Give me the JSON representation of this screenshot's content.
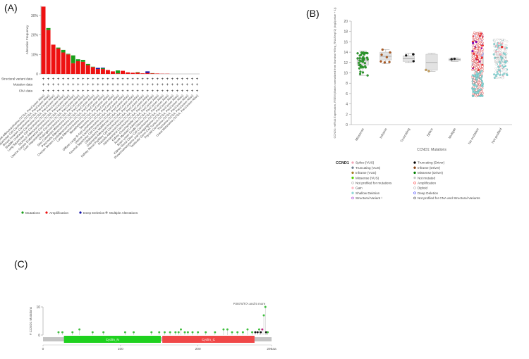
{
  "panel_labels": [
    "(A)",
    "(B)",
    "(C)"
  ],
  "chart_data": [
    {
      "type": "bar",
      "ylabel": "Alteration Frequency",
      "ylim": [
        0,
        35
      ],
      "ytick_labels": [
        "0",
        "10%",
        "20%",
        "30%"
      ],
      "row_labels": [
        "Structural variant data",
        "Mutation data",
        "CNA data"
      ],
      "categories": [
        "Esophageal Adenocarcinoma (TCGA, PanCancer Atlas)",
        "Head and Neck Squamous Cell Carcinoma (TCGA, PanCancer Atlas)",
        "Breast Invasive Carcinoma (TCGA, PanCancer Atlas)",
        "Bladder Urothelial Carcinoma (TCGA, PanCancer Atlas)",
        "Lung Squamous Cell Carcinoma (TCGA, PanCancer Atlas)",
        "Stomach Adenocarcinoma (TCGA, PanCancer Atlas)",
        "Uterine Corpus Endometrial Carcinoma (TCGA, PanCancer Atlas)",
        "Liver Hepatocellular Carcinoma (TCGA, PanCancer Atlas)",
        "Cholangiocarcinoma (TCGA, PanCancer Atlas)",
        "Skin Cutaneous Melanoma (TCGA, PanCancer Atlas)",
        "Pancreatic Adenocarcinoma (TCGA, PanCancer Atlas)",
        "Ovarian Serous Cystadenocarcinoma (TCGA, PanCancer Atlas)",
        "Lung Adenocarcinoma (TCGA, PanCancer Atlas)",
        "Mesothelioma (TCGA, PanCancer Atlas)",
        "Sarcoma (TCGA, PanCancer Atlas)",
        "Diffuse Large B-Cell Lymphoma (TCGA, PanCancer Atlas)",
        "Uterine Carcinosarcoma (TCGA, PanCancer Atlas)",
        "Cervical Squamous Cell Carcinoma (TCGA, PanCancer Atlas)",
        "Glioblastoma Multiforme (TCGA, PanCancer Atlas)",
        "Colorectal Adenocarcinoma (TCGA, PanCancer Atlas)",
        "Kidney Renal Papillary Cell Carcinoma (TCGA, PanCancer Atlas)",
        "Prostate Adenocarcinoma (TCGA, PanCancer Atlas)",
        "Adrenocortical Carcinoma (TCGA, PanCancer Atlas)",
        "Kidney Chromophobe (TCGA, PanCancer Atlas)",
        "Acute Myeloid Leukemia (TCGA, PanCancer Atlas)",
        "Brain Lower Grade Glioma (TCGA, PanCancer Atlas)",
        "Kidney Renal Clear Cell Carcinoma (TCGA, PanCancer Atlas)",
        "Pheochromocytoma and Paraganglioma (TCGA, PanCancer Atlas)",
        "Testicular Germ Cell Tumors (TCGA, PanCancer Atlas)",
        "Thyroid Carcinoma (TCGA, PanCancer Atlas)",
        "Thymoma (TCGA, PanCancer Atlas)",
        "Uveal Melanoma (TCGA, PanCancer Atlas)"
      ],
      "series": [
        {
          "name": "Amplification",
          "color": "#ee1111",
          "values": [
            34.5,
            22.5,
            15.0,
            13.0,
            11.0,
            10.0,
            5.5,
            6.5,
            6.2,
            4.5,
            3.5,
            2.5,
            2.5,
            2.0,
            1.3,
            0.3,
            1.6,
            0.8,
            0.6,
            0.7,
            0.3,
            0.5,
            0.3,
            0.2,
            0.1,
            0.1,
            0,
            0,
            0,
            0,
            0,
            0
          ]
        },
        {
          "name": "Mutation",
          "color": "#1a9e1a",
          "values": [
            0,
            1.0,
            0,
            0.5,
            1.3,
            0.3,
            4.0,
            1.0,
            1.0,
            0.6,
            0.2,
            0,
            0.4,
            0,
            0,
            1.5,
            0,
            0,
            0,
            0.2,
            0,
            0,
            0.1,
            0,
            0,
            0,
            0,
            0,
            0,
            0,
            0,
            0
          ]
        },
        {
          "name": "Deep Deletion",
          "color": "#1010a8",
          "values": [
            0,
            0,
            0,
            0,
            0,
            0,
            0,
            0,
            0,
            0,
            0,
            0.6,
            0.3,
            0,
            0,
            0,
            0,
            0,
            0,
            0,
            0,
            0.8,
            0,
            0,
            0,
            0,
            0,
            0,
            0,
            0,
            0,
            0
          ]
        },
        {
          "name": "Multiple Alterations",
          "color": "#999999",
          "values": [
            0,
            0,
            0,
            0,
            0,
            0,
            0,
            0,
            0,
            0,
            0,
            0,
            0,
            0,
            0,
            0,
            0,
            0,
            0,
            0,
            0,
            0,
            0,
            0,
            0,
            0,
            0,
            0,
            0,
            0,
            0,
            0
          ]
        }
      ],
      "legend": [
        "Mutations",
        "Amplification",
        "Deep Deletion",
        "Multiple Alterations"
      ],
      "legend_placement": "bottom"
    },
    {
      "type": "scatter",
      "ylabel": "CCND1: mRNA Expression, RSEM (Batch normalized from Illumina HiSeq_RNASeqV2) (log2(value + 1))",
      "xlabel": "CCND1: Mutations",
      "ylim": [
        0,
        20
      ],
      "ytick_labels": [
        "0",
        "2",
        "4",
        "6",
        "8",
        "10",
        "12",
        "14",
        "16",
        "18",
        "20"
      ],
      "categories": [
        "Missense",
        "Inframe",
        "Truncating",
        "Splice",
        "Multiple",
        "No mutation",
        "Not profiled"
      ],
      "boxes": [
        {
          "q1": 11.5,
          "median": 12.3,
          "q3": 13.0,
          "min": 9.5,
          "max": 14.2
        },
        {
          "q1": 12.5,
          "median": 13.2,
          "q3": 14.0,
          "min": 11.8,
          "max": 14.5
        },
        {
          "q1": 12.2,
          "median": 12.7,
          "q3": 13.3,
          "min": 12.0,
          "max": 13.8
        },
        {
          "q1": 10.5,
          "median": 12.0,
          "q3": 13.6,
          "min": 10.3,
          "max": 13.8
        },
        {
          "q1": 12.3,
          "median": 12.6,
          "q3": 12.8,
          "min": 12.2,
          "max": 12.9
        },
        {
          "q1": 11.0,
          "median": 12.8,
          "q3": 14.0,
          "min": 7.5,
          "max": 17.8
        },
        {
          "q1": 12.0,
          "median": 13.0,
          "q3": 14.0,
          "min": 9.0,
          "max": 16.5
        }
      ],
      "legend_title": "CCND1",
      "legend": [
        {
          "label": "Splice (VUS)",
          "color": "#f3a6b9"
        },
        {
          "label": "Truncating (Driver)",
          "color": "#000000"
        },
        {
          "label": "Truncating (VUS)",
          "color": "#708090"
        },
        {
          "label": "Inframe (Driver)",
          "color": "#8b4513"
        },
        {
          "label": "Inframe (VUS)",
          "color": "#a68028"
        },
        {
          "label": "Missense (Driver)",
          "color": "#008000"
        },
        {
          "label": "Missense (VUS)",
          "color": "#53d400"
        },
        {
          "label": "Not mutated",
          "color": "#c6c6c6"
        },
        {
          "label": "Not profiled for mutations",
          "color": "#ffffff"
        },
        {
          "label": "Amplification",
          "color": "#ff0000"
        },
        {
          "label": "Gain",
          "color": "#ffb6c1"
        },
        {
          "label": "Diploid",
          "color": "#ffffff"
        },
        {
          "label": "Shallow Deletion",
          "color": "#8fd8d8"
        },
        {
          "label": "Deep Deletion",
          "color": "#0000ff"
        },
        {
          "label": "Structural Variant ¹",
          "color": "#8b00c9"
        },
        {
          "label": "Not profiled for CNA and Structural Variants",
          "color": "#ffffff"
        }
      ]
    },
    {
      "type": "lollipop",
      "ylabel": "# CCND1 Mutations",
      "ylim": [
        0,
        10
      ],
      "ytick_labels": [
        "0",
        "10"
      ],
      "xlim": [
        0,
        295
      ],
      "xtick_labels": [
        "0",
        "100",
        "200",
        "295aa"
      ],
      "domains": [
        {
          "name": "Cyclin_N",
          "start": 27,
          "end": 152,
          "color": "#1fd11f"
        },
        {
          "name": "Cyclin_C",
          "start": 154,
          "end": 273,
          "color": "#f04848"
        }
      ],
      "annotation": "P287S/T/A and 5 more",
      "mutations": [
        {
          "pos": 20,
          "count": 1,
          "color": "#3fbf3f"
        },
        {
          "pos": 25,
          "count": 1,
          "color": "#3fbf3f"
        },
        {
          "pos": 38,
          "count": 1,
          "color": "#3fbf3f"
        },
        {
          "pos": 47,
          "count": 2,
          "color": "#3fbf3f"
        },
        {
          "pos": 64,
          "count": 1,
          "color": "#3fbf3f"
        },
        {
          "pos": 78,
          "count": 1,
          "color": "#3fbf3f"
        },
        {
          "pos": 106,
          "count": 1,
          "color": "#3fbf3f"
        },
        {
          "pos": 117,
          "count": 1,
          "color": "#3fbf3f"
        },
        {
          "pos": 140,
          "count": 1,
          "color": "#3fbf3f"
        },
        {
          "pos": 150,
          "count": 1,
          "color": "#3fbf3f"
        },
        {
          "pos": 157,
          "count": 1,
          "color": "#3fbf3f"
        },
        {
          "pos": 164,
          "count": 1,
          "color": "#3fbf3f"
        },
        {
          "pos": 171,
          "count": 1,
          "color": "#3fbf3f"
        },
        {
          "pos": 175,
          "count": 1,
          "color": "#3fbf3f"
        },
        {
          "pos": 178,
          "count": 2,
          "color": "#3fbf3f"
        },
        {
          "pos": 183,
          "count": 1,
          "color": "#3fbf3f"
        },
        {
          "pos": 187,
          "count": 1,
          "color": "#3fbf3f"
        },
        {
          "pos": 193,
          "count": 1,
          "color": "#3fbf3f"
        },
        {
          "pos": 200,
          "count": 1,
          "color": "#3fbf3f"
        },
        {
          "pos": 210,
          "count": 1,
          "color": "#3fbf3f"
        },
        {
          "pos": 222,
          "count": 1,
          "color": "#3fbf3f"
        },
        {
          "pos": 233,
          "count": 2,
          "color": "#3fbf3f"
        },
        {
          "pos": 238,
          "count": 2,
          "color": "#3fbf3f"
        },
        {
          "pos": 244,
          "count": 1,
          "color": "#3fbf3f"
        },
        {
          "pos": 251,
          "count": 1,
          "color": "#3fbf3f"
        },
        {
          "pos": 258,
          "count": 1,
          "color": "#3fbf3f"
        },
        {
          "pos": 264,
          "count": 2,
          "color": "#3fbf3f"
        },
        {
          "pos": 270,
          "count": 1,
          "color": "#3fbf3f"
        },
        {
          "pos": 274,
          "count": 1,
          "color": "#111111"
        },
        {
          "pos": 277,
          "count": 1,
          "color": "#111111"
        },
        {
          "pos": 279,
          "count": 2,
          "color": "#3fbf3f"
        },
        {
          "pos": 281,
          "count": 1,
          "color": "#111111"
        },
        {
          "pos": 283,
          "count": 2,
          "color": "#c01b7a"
        },
        {
          "pos": 285,
          "count": 7,
          "color": "#3fbf3f"
        },
        {
          "pos": 287,
          "count": 10,
          "color": "#3fbf3f"
        },
        {
          "pos": 288,
          "count": 1,
          "color": "#111111"
        },
        {
          "pos": 290,
          "count": 1,
          "color": "#3fbf3f"
        }
      ]
    }
  ]
}
